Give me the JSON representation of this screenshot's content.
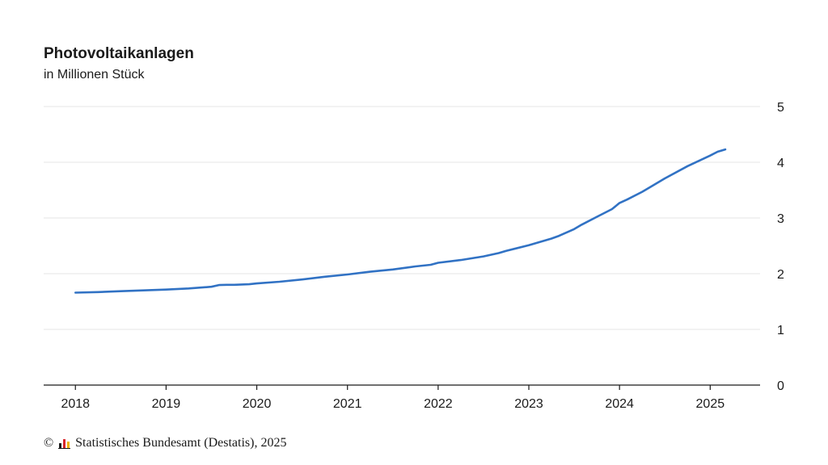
{
  "header": {
    "title": "Photovoltaikanlagen",
    "subtitle": "in Millionen Stück"
  },
  "footer": {
    "copyright_symbol": "©",
    "source_text": "Statistisches Bundesamt (Destatis), 2025"
  },
  "colors": {
    "line": "#3172c4",
    "grid": "#e6e6e6",
    "axis": "#1a1a1a"
  },
  "chart_data": {
    "type": "line",
    "title": "Photovoltaikanlagen",
    "subtitle": "in Millionen Stück",
    "xlabel": "",
    "ylabel": "",
    "xlim": [
      2017.65,
      2025.55
    ],
    "ylim": [
      0,
      5
    ],
    "x_ticks": [
      "2018",
      "2019",
      "2020",
      "2021",
      "2022",
      "2023",
      "2024",
      "2025"
    ],
    "y_ticks": [
      "0",
      "1",
      "2",
      "3",
      "4",
      "5"
    ],
    "y_axis_position": "right",
    "grid": "horizontal",
    "series": [
      {
        "x": [
          2018.0,
          2018.25,
          2018.5,
          2018.75,
          2019.0,
          2019.25,
          2019.5,
          2019.583,
          2019.667,
          2019.75,
          2019.917,
          2020.0,
          2020.25,
          2020.5,
          2020.75,
          2021.0,
          2021.25,
          2021.5,
          2021.75,
          2021.917,
          2022.0,
          2022.25,
          2022.5,
          2022.667,
          2022.75,
          2023.0,
          2023.25,
          2023.333,
          2023.5,
          2023.583,
          2023.75,
          2023.917,
          2024.0,
          2024.083,
          2024.25,
          2024.333,
          2024.5,
          2024.75,
          2025.0,
          2025.083,
          2025.167
        ],
        "values": [
          1.66,
          1.67,
          1.685,
          1.7,
          1.715,
          1.735,
          1.765,
          1.795,
          1.8,
          1.8,
          1.81,
          1.825,
          1.855,
          1.895,
          1.945,
          1.985,
          2.035,
          2.075,
          2.13,
          2.16,
          2.195,
          2.245,
          2.31,
          2.37,
          2.41,
          2.51,
          2.63,
          2.68,
          2.8,
          2.88,
          3.02,
          3.16,
          3.27,
          3.33,
          3.47,
          3.55,
          3.71,
          3.93,
          4.12,
          4.19,
          4.23
        ]
      }
    ]
  }
}
